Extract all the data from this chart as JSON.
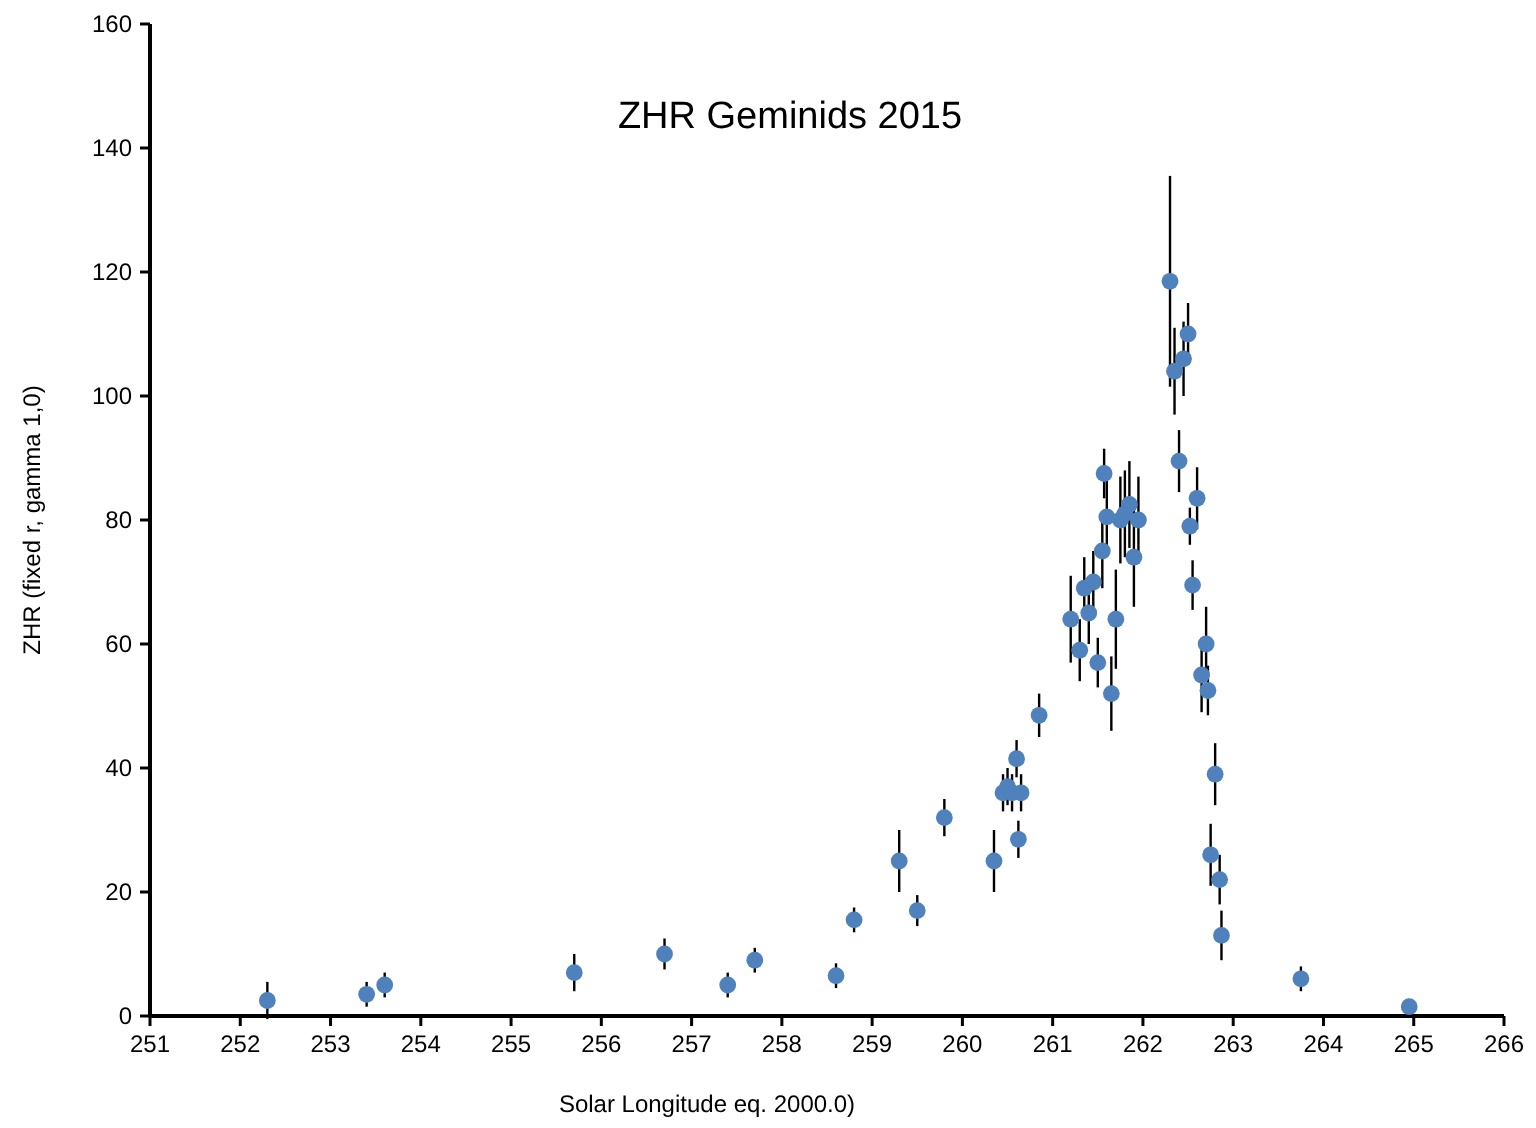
{
  "chart_data": {
    "type": "scatter",
    "title": "ZHR Geminids 2015",
    "xlabel": "Solar Longitude eq. 2000.0)",
    "ylabel": "ZHR (fixed r, gamma 1,0)",
    "xlim": [
      251,
      266
    ],
    "xticks": [
      251,
      252,
      253,
      254,
      255,
      256,
      257,
      258,
      259,
      260,
      261,
      262,
      263,
      264,
      265,
      266
    ],
    "ylim": [
      0,
      160
    ],
    "yticks": [
      0,
      20,
      40,
      60,
      80,
      100,
      120,
      140,
      160
    ],
    "grid": false,
    "marker": "circle",
    "series": [
      {
        "color": "#4f81bd",
        "x": [
          252.3,
          253.4,
          253.6,
          255.7,
          256.7,
          257.4,
          257.7,
          258.6,
          258.8,
          259.3,
          259.5,
          259.8,
          260.35,
          260.45,
          260.5,
          260.55,
          260.6,
          260.65,
          260.62,
          260.85,
          261.2,
          261.3,
          261.35,
          261.4,
          261.45,
          261.5,
          261.55,
          261.57,
          261.6,
          261.65,
          261.7,
          261.75,
          261.8,
          261.85,
          261.9,
          261.95,
          262.3,
          262.35,
          262.4,
          262.45,
          262.5,
          262.52,
          262.55,
          262.6,
          262.65,
          262.7,
          262.72,
          262.8,
          262.75,
          262.85,
          262.87,
          263.75,
          264.95
        ],
        "values": [
          2.5,
          3.5,
          5,
          7,
          10,
          5,
          9,
          6.5,
          15.5,
          25,
          17,
          32,
          25,
          36,
          37,
          36,
          41.5,
          36,
          28.5,
          48.5,
          64,
          59,
          69,
          65,
          70,
          57,
          75,
          87.5,
          80.5,
          52,
          64,
          80,
          81,
          82.5,
          74,
          80,
          118.5,
          104,
          89.5,
          106,
          110,
          79,
          69.5,
          83.5,
          55,
          60,
          52.5,
          39,
          26,
          22,
          13,
          6,
          1.5
        ],
        "errors": [
          3,
          2,
          2,
          3,
          2.5,
          2,
          2,
          2,
          2,
          5,
          2.5,
          3,
          5,
          3,
          3,
          3,
          3,
          3,
          3,
          3.5,
          7,
          5,
          5,
          5,
          5,
          4,
          6,
          4,
          6,
          6,
          8,
          7,
          7,
          7,
          8,
          7,
          17,
          7,
          5,
          6,
          5,
          3,
          4,
          5,
          6,
          6,
          4,
          5,
          5,
          4,
          4,
          2,
          null
        ]
      }
    ]
  }
}
